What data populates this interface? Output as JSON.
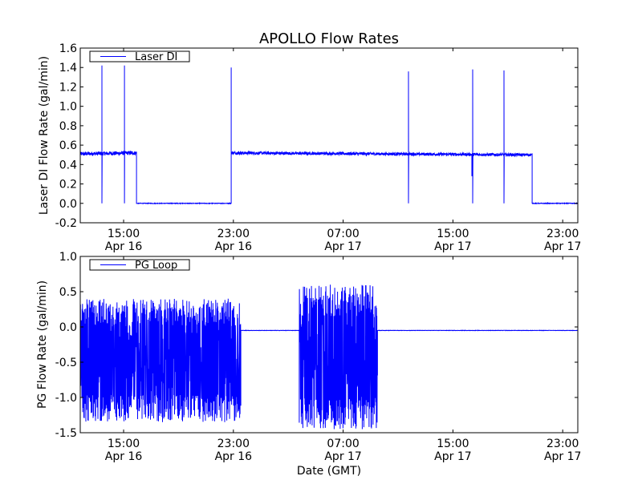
{
  "chart_data": [
    {
      "type": "line",
      "title": "APOLLO Flow Rates",
      "xlabel": "",
      "ylabel": "Laser DI Flow Rate (gal/min)",
      "legend": {
        "label": "Laser DI",
        "placement": "top-left"
      },
      "color": "#0000ff",
      "x_units": "hours since Apr 16 00:00 GMT",
      "xlim": [
        11.84,
        48.1
      ],
      "ylim": [
        -0.2,
        1.6
      ],
      "yticks": [
        "-0.2",
        "0.0",
        "0.2",
        "0.4",
        "0.6",
        "0.8",
        "1.0",
        "1.2",
        "1.4",
        "1.6"
      ],
      "ytick_values": [
        -0.2,
        0,
        0.2,
        0.4,
        0.6,
        0.8,
        1.0,
        1.2,
        1.4,
        1.6
      ],
      "xticks": [
        {
          "value": 15,
          "time": "15:00",
          "date": "Apr 16"
        },
        {
          "value": 23,
          "time": "23:00",
          "date": "Apr 16"
        },
        {
          "value": 31,
          "time": "07:00",
          "date": "Apr 17"
        },
        {
          "value": 39,
          "time": "15:00",
          "date": "Apr 17"
        },
        {
          "value": 47,
          "time": "23:00",
          "date": "Apr 17"
        }
      ],
      "segments": [
        {
          "start": 11.84,
          "end": 15.94,
          "level_start": 0.51,
          "level_end": 0.52,
          "noise": 0.02
        },
        {
          "start": 15.94,
          "end": 22.84,
          "level_start": 0.0,
          "level_end": 0.0,
          "noise": 0.003
        },
        {
          "start": 22.84,
          "end": 44.77,
          "level_start": 0.52,
          "level_end": 0.5,
          "noise": 0.015
        },
        {
          "start": 44.77,
          "end": 48.1,
          "level_start": 0.0,
          "level_end": 0.0,
          "noise": 0.003
        }
      ],
      "spikes": [
        {
          "x": 13.42,
          "high": 1.42,
          "low": 0.0
        },
        {
          "x": 15.06,
          "high": 1.42,
          "low": 0.0
        },
        {
          "x": 22.84,
          "high": 1.4,
          "low": 0.0
        },
        {
          "x": 35.76,
          "high": 1.36,
          "low": 0.0
        },
        {
          "x": 40.38,
          "high": 0.5,
          "low": 0.28
        },
        {
          "x": 40.44,
          "high": 1.38,
          "low": 0.0
        },
        {
          "x": 42.72,
          "high": 1.37,
          "low": 0.0
        }
      ]
    },
    {
      "type": "line",
      "title": "",
      "xlabel": "Date (GMT)",
      "ylabel": "PG Flow Rate (gal/min)",
      "legend": {
        "label": "PG Loop",
        "placement": "top-left"
      },
      "color": "#0000ff",
      "x_units": "hours since Apr 16 00:00 GMT",
      "xlim": [
        11.84,
        48.1
      ],
      "ylim": [
        -1.5,
        1.0
      ],
      "yticks": [
        "-1.5",
        "-1.0",
        "-0.5",
        "0.0",
        "0.5",
        "1.0"
      ],
      "ytick_values": [
        -1.5,
        -1.0,
        -0.5,
        0,
        0.5,
        1.0
      ],
      "xticks": [
        {
          "value": 15,
          "time": "15:00",
          "date": "Apr 16"
        },
        {
          "value": 23,
          "time": "23:00",
          "date": "Apr 16"
        },
        {
          "value": 31,
          "time": "07:00",
          "date": "Apr 17"
        },
        {
          "value": 39,
          "time": "15:00",
          "date": "Apr 17"
        },
        {
          "value": 47,
          "time": "23:00",
          "date": "Apr 17"
        }
      ],
      "segments": [
        {
          "start": 11.84,
          "end": 23.54,
          "oscillating": true,
          "min": -1.35,
          "max": 0.4
        },
        {
          "start": 23.54,
          "end": 27.8,
          "level": -0.05
        },
        {
          "start": 27.8,
          "end": 33.5,
          "oscillating": true,
          "min": -1.45,
          "max": 0.6
        },
        {
          "start": 33.5,
          "end": 48.1,
          "level": -0.05
        }
      ]
    }
  ]
}
